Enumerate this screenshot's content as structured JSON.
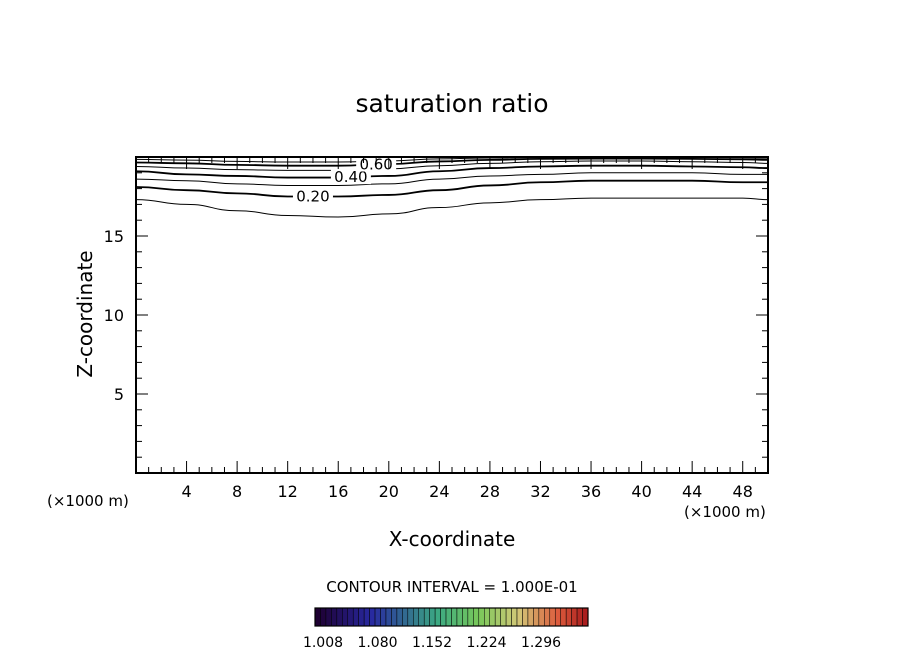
{
  "chart_data": {
    "type": "contour",
    "title": "saturation ratio",
    "xlabel": "X-coordinate",
    "ylabel": "Z-coordinate",
    "x_unit_left": "(×1000 m)",
    "x_unit_right": "(×1000 m)",
    "xlim": [
      0,
      50
    ],
    "ylim": [
      0,
      20
    ],
    "x_ticks": [
      "4",
      "8",
      "12",
      "16",
      "20",
      "24",
      "28",
      "32",
      "36",
      "40",
      "44",
      "48"
    ],
    "y_ticks": [
      "5",
      "10",
      "15"
    ],
    "contour_interval_label": "CONTOUR INTERVAL = 1.000E-01",
    "colorbar_labels": [
      "1.008",
      "1.080",
      "1.152",
      "1.224",
      "1.296"
    ],
    "contours": [
      {
        "level": 0.1,
        "label": "",
        "x": [
          0,
          4,
          8,
          12,
          16,
          20,
          24,
          28,
          32,
          36,
          40,
          44,
          48,
          50
        ],
        "y": [
          17.3,
          17.0,
          16.6,
          16.3,
          16.2,
          16.4,
          16.8,
          17.1,
          17.3,
          17.4,
          17.4,
          17.4,
          17.4,
          17.3
        ]
      },
      {
        "level": 0.2,
        "label": "0.20",
        "x": [
          0,
          4,
          8,
          12,
          16,
          20,
          24,
          28,
          32,
          36,
          40,
          44,
          48,
          50
        ],
        "y": [
          18.1,
          17.9,
          17.7,
          17.5,
          17.5,
          17.6,
          17.9,
          18.2,
          18.4,
          18.5,
          18.5,
          18.5,
          18.4,
          18.4
        ]
      },
      {
        "level": 0.3,
        "label": "",
        "x": [
          0,
          4,
          8,
          12,
          16,
          20,
          24,
          28,
          32,
          36,
          40,
          44,
          48,
          50
        ],
        "y": [
          18.6,
          18.5,
          18.3,
          18.2,
          18.2,
          18.3,
          18.6,
          18.8,
          18.9,
          19.0,
          19.0,
          19.0,
          18.9,
          18.9
        ]
      },
      {
        "level": 0.4,
        "label": "0.40",
        "x": [
          0,
          4,
          8,
          12,
          16,
          20,
          24,
          28,
          32,
          36,
          40,
          44,
          48,
          50
        ],
        "y": [
          19.1,
          18.9,
          18.8,
          18.7,
          18.7,
          18.8,
          19.1,
          19.3,
          19.4,
          19.45,
          19.45,
          19.4,
          19.35,
          19.3
        ]
      },
      {
        "level": 0.5,
        "label": "",
        "x": [
          0,
          4,
          8,
          12,
          16,
          20,
          24,
          28,
          32,
          36,
          40,
          44,
          48,
          50
        ],
        "y": [
          19.4,
          19.3,
          19.2,
          19.15,
          19.15,
          19.25,
          19.45,
          19.6,
          19.7,
          19.75,
          19.75,
          19.7,
          19.65,
          19.6
        ]
      },
      {
        "level": 0.6,
        "label": "0.60",
        "x": [
          0,
          4,
          8,
          12,
          16,
          20,
          24,
          28,
          32,
          36,
          40,
          44,
          48,
          50
        ],
        "y": [
          19.65,
          19.6,
          19.5,
          19.45,
          19.45,
          19.55,
          19.72,
          19.82,
          19.88,
          19.9,
          19.9,
          19.88,
          19.85,
          19.82
        ]
      },
      {
        "level": 0.7,
        "label": "",
        "x": [
          0,
          4,
          8,
          12,
          16,
          20,
          24,
          28,
          32,
          36,
          40,
          44,
          48,
          50
        ],
        "y": [
          19.85,
          19.8,
          19.72,
          19.68,
          19.68,
          19.75,
          19.88,
          19.94,
          19.97,
          19.98,
          19.98,
          19.97,
          19.95,
          19.93
        ]
      }
    ]
  }
}
